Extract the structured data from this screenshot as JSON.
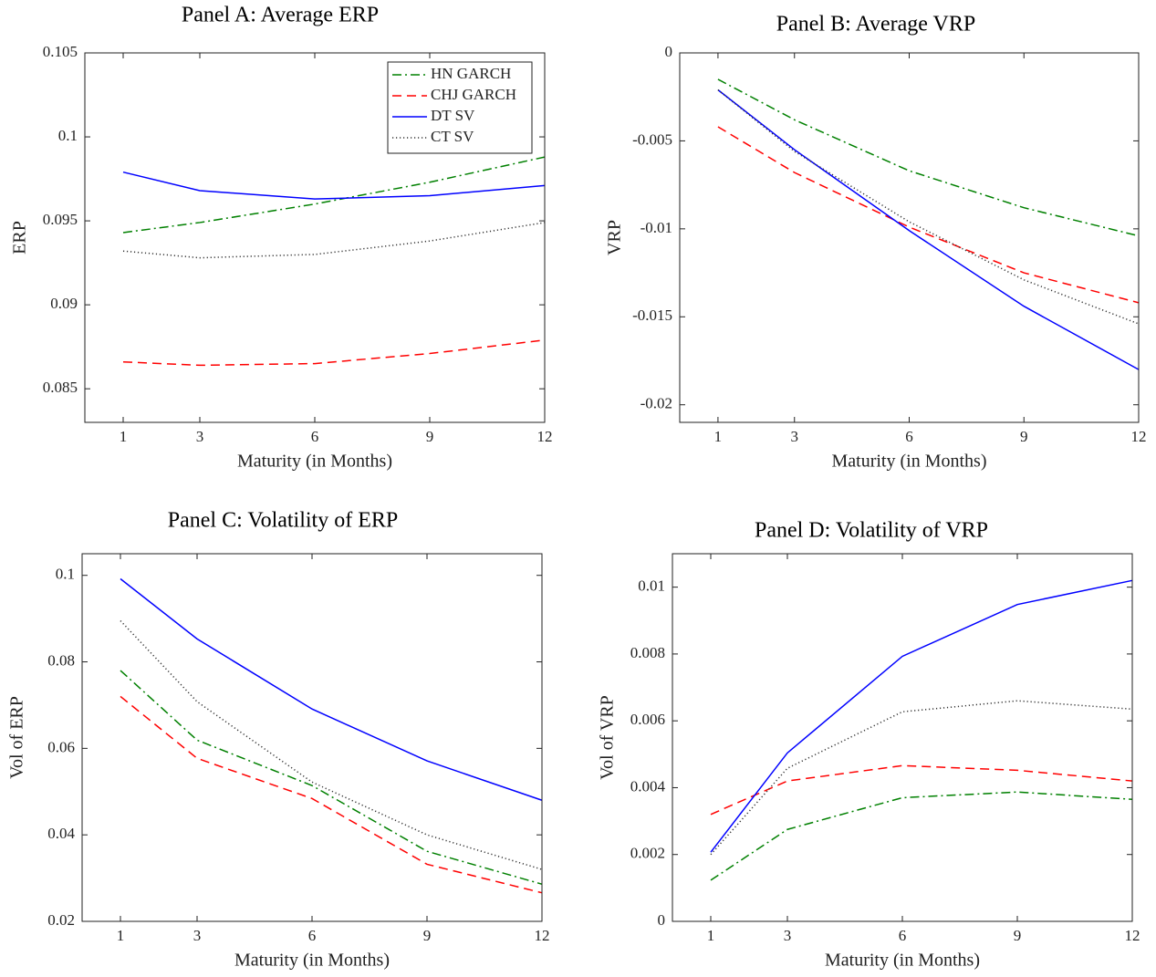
{
  "chart_data": [
    {
      "type": "line",
      "title": "Panel A: Average ERP",
      "xlabel": "Maturity (in Months)",
      "ylabel": "ERP",
      "x": [
        1,
        3,
        6,
        9,
        12
      ],
      "xlim": [
        0,
        12
      ],
      "xticks": [
        1,
        3,
        6,
        9,
        12
      ],
      "ylim": [
        0.083,
        0.105
      ],
      "yticks": [
        0.085,
        0.09,
        0.095,
        0.1,
        0.105
      ],
      "legend": "upper right",
      "series": [
        {
          "name": "HN GARCH",
          "color": "#008000",
          "linestyle": "dashdot",
          "values": [
            0.0943,
            0.0949,
            0.096,
            0.0973,
            0.0988
          ]
        },
        {
          "name": "CHJ GARCH",
          "color": "#ff0000",
          "linestyle": "dashed",
          "values": [
            0.0866,
            0.0864,
            0.0865,
            0.0871,
            0.0879
          ]
        },
        {
          "name": "DT SV",
          "color": "#0000ff",
          "linestyle": "solid",
          "values": [
            0.0979,
            0.0968,
            0.0963,
            0.0965,
            0.0971
          ]
        },
        {
          "name": "CT SV",
          "color": "#333333",
          "linestyle": "dotted",
          "values": [
            0.0932,
            0.0928,
            0.093,
            0.0938,
            0.0949
          ]
        }
      ]
    },
    {
      "type": "line",
      "title": "Panel B: Average VRP",
      "xlabel": "Maturity (in Months)",
      "ylabel": "VRP",
      "x": [
        1,
        3,
        6,
        9,
        12
      ],
      "xlim": [
        0,
        12
      ],
      "xticks": [
        1,
        3,
        6,
        9,
        12
      ],
      "ylim": [
        -0.021,
        0
      ],
      "yticks": [
        -0.02,
        -0.015,
        -0.01,
        -0.005,
        0
      ],
      "series": [
        {
          "color": "#008000",
          "linestyle": "dashdot",
          "values": [
            -0.0015,
            -0.0038,
            -0.0067,
            -0.0088,
            -0.0104
          ]
        },
        {
          "color": "#ff0000",
          "linestyle": "dashed",
          "values": [
            -0.0042,
            -0.0068,
            -0.0099,
            -0.0125,
            -0.0142
          ]
        },
        {
          "color": "#0000ff",
          "linestyle": "solid",
          "values": [
            -0.0021,
            -0.0055,
            -0.0101,
            -0.0144,
            -0.018
          ]
        },
        {
          "color": "#333333",
          "linestyle": "dotted",
          "values": [
            -0.0021,
            -0.0056,
            -0.0096,
            -0.0129,
            -0.0154
          ]
        }
      ]
    },
    {
      "type": "line",
      "title": "Panel C: Volatility of ERP",
      "xlabel": "Maturity (in Months)",
      "ylabel": "Vol of ERP",
      "x": [
        1,
        3,
        6,
        9,
        12
      ],
      "xlim": [
        0,
        12
      ],
      "xticks": [
        1,
        3,
        6,
        9,
        12
      ],
      "ylim": [
        0.02,
        0.105
      ],
      "yticks": [
        0.02,
        0.04,
        0.06,
        0.08,
        0.1
      ],
      "series": [
        {
          "color": "#008000",
          "linestyle": "dashdot",
          "values": [
            0.078,
            0.0619,
            0.0514,
            0.0362,
            0.0286
          ]
        },
        {
          "color": "#ff0000",
          "linestyle": "dashed",
          "values": [
            0.072,
            0.0577,
            0.0484,
            0.0332,
            0.0266
          ]
        },
        {
          "color": "#0000ff",
          "linestyle": "solid",
          "values": [
            0.0992,
            0.0853,
            0.0691,
            0.0571,
            0.048
          ]
        },
        {
          "color": "#333333",
          "linestyle": "dotted",
          "values": [
            0.0895,
            0.0708,
            0.0522,
            0.04,
            0.032
          ]
        }
      ]
    },
    {
      "type": "line",
      "title": "Panel D: Volatility of VRP",
      "xlabel": "Maturity (in Months)",
      "ylabel": "Vol of VRP",
      "x": [
        1,
        3,
        6,
        9,
        12
      ],
      "xlim": [
        0,
        12
      ],
      "xticks": [
        1,
        3,
        6,
        9,
        12
      ],
      "ylim": [
        0,
        0.011
      ],
      "yticks": [
        0,
        0.002,
        0.004,
        0.006,
        0.008,
        0.01
      ],
      "series": [
        {
          "color": "#008000",
          "linestyle": "dashdot",
          "values": [
            0.00123,
            0.00275,
            0.0037,
            0.00387,
            0.00365
          ]
        },
        {
          "color": "#ff0000",
          "linestyle": "dashed",
          "values": [
            0.0032,
            0.0042,
            0.00466,
            0.00452,
            0.0042
          ]
        },
        {
          "color": "#0000ff",
          "linestyle": "solid",
          "values": [
            0.00207,
            0.00504,
            0.00793,
            0.00948,
            0.0102
          ]
        },
        {
          "color": "#333333",
          "linestyle": "dotted",
          "values": [
            0.002,
            0.00458,
            0.00627,
            0.0066,
            0.00635
          ]
        }
      ]
    }
  ]
}
